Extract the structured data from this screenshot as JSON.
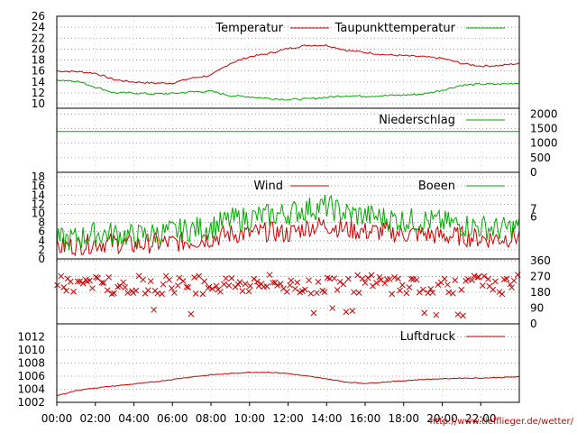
{
  "chart_data": [
    {
      "type": "line",
      "ylim": [
        10,
        26
      ],
      "yticks": [
        10,
        12,
        14,
        16,
        18,
        20,
        22,
        24,
        26
      ],
      "grid": true,
      "legend_position": "top-right",
      "x": [
        "00:00",
        "01:00",
        "02:00",
        "03:00",
        "04:00",
        "05:00",
        "06:00",
        "07:00",
        "08:00",
        "09:00",
        "10:00",
        "11:00",
        "12:00",
        "13:00",
        "14:00",
        "15:00",
        "16:00",
        "17:00",
        "18:00",
        "19:00",
        "20:00",
        "21:00",
        "22:00",
        "23:00",
        "24:00"
      ],
      "series": [
        {
          "name": "Temperatur",
          "color": "#cc0000",
          "values": [
            16.0,
            15.9,
            15.6,
            14.4,
            14.0,
            13.8,
            13.8,
            14.7,
            15.2,
            17.4,
            18.6,
            19.2,
            20.1,
            20.7,
            20.7,
            19.8,
            19.4,
            19.0,
            18.8,
            18.6,
            18.3,
            17.4,
            16.9,
            17.0,
            17.4
          ]
        },
        {
          "name": "Taupunkttemperatur",
          "color": "#00aa00",
          "values": [
            14.4,
            14.2,
            13.1,
            12.0,
            12.0,
            11.8,
            11.9,
            12.2,
            12.3,
            11.5,
            11.3,
            11.0,
            10.8,
            10.9,
            11.2,
            11.5,
            11.4,
            11.5,
            11.6,
            11.8,
            12.5,
            13.4,
            13.6,
            13.6,
            13.8
          ]
        }
      ]
    },
    {
      "type": "line",
      "ylim": [
        0,
        2000
      ],
      "yticks": [
        0,
        500,
        1000,
        1500,
        2000
      ],
      "grid": true,
      "legend_position": "top-right",
      "x": [
        "00:00",
        "24:00"
      ],
      "series": [
        {
          "name": "Niederschlag",
          "color": "#00aa00",
          "values": [
            1402.0,
            1402.0
          ]
        }
      ]
    },
    {
      "type": "line",
      "ylim": [
        0,
        19
      ],
      "yticks": [
        0,
        2,
        4,
        6,
        8,
        10,
        12,
        14,
        16,
        18
      ],
      "y2ticks": [
        6,
        7
      ],
      "grid": true,
      "legend_position": "top-right",
      "x": [
        "00:00",
        "01:00",
        "02:00",
        "03:00",
        "04:00",
        "05:00",
        "06:00",
        "07:00",
        "08:00",
        "09:00",
        "10:00",
        "11:00",
        "12:00",
        "13:00",
        "14:00",
        "15:00",
        "16:00",
        "17:00",
        "18:00",
        "19:00",
        "20:00",
        "21:00",
        "22:00",
        "23:00",
        "24:00"
      ],
      "series": [
        {
          "name": "Wind",
          "color": "#cc0000",
          "values": [
            2.5,
            3.0,
            3.5,
            3.5,
            3.0,
            3.5,
            3.5,
            4.0,
            4.5,
            5.5,
            5.5,
            6.0,
            5.5,
            7.0,
            7.5,
            6.5,
            6.0,
            6.0,
            5.5,
            5.5,
            5.0,
            5.0,
            4.5,
            4.5,
            5.0
          ]
        },
        {
          "name": "Boeen",
          "color": "#00aa00",
          "values": [
            4.0,
            4.5,
            5.5,
            5.5,
            5.0,
            5.5,
            6.0,
            6.5,
            7.0,
            8.5,
            9.0,
            9.5,
            10.0,
            11.0,
            11.5,
            10.0,
            9.5,
            9.0,
            8.5,
            8.5,
            8.0,
            7.5,
            7.0,
            6.5,
            7.0
          ]
        }
      ]
    },
    {
      "type": "scatter",
      "ylim": [
        0,
        360
      ],
      "yticks": [
        0,
        90,
        180,
        270,
        360
      ],
      "grid": true,
      "marker": "x",
      "x": [
        "00:00",
        "24:00"
      ],
      "series": [
        {
          "name": "",
          "color": "#cc0000",
          "values": [
            225,
            270
          ]
        }
      ]
    },
    {
      "type": "line",
      "ylim": [
        1002,
        1014
      ],
      "yticks": [
        1002,
        1004,
        1006,
        1008,
        1010,
        1012
      ],
      "grid": true,
      "legend_position": "top-right",
      "x": [
        "00:00",
        "01:00",
        "02:00",
        "03:00",
        "04:00",
        "05:00",
        "06:00",
        "07:00",
        "08:00",
        "09:00",
        "10:00",
        "11:00",
        "12:00",
        "13:00",
        "14:00",
        "15:00",
        "16:00",
        "17:00",
        "18:00",
        "19:00",
        "20:00",
        "21:00",
        "22:00",
        "23:00",
        "24:00"
      ],
      "series": [
        {
          "name": "Luftdruck",
          "color": "#cc0000",
          "values": [
            1003.0,
            1003.8,
            1004.2,
            1004.5,
            1004.8,
            1005.1,
            1005.5,
            1005.9,
            1006.2,
            1006.4,
            1006.6,
            1006.6,
            1006.4,
            1006.0,
            1005.6,
            1005.1,
            1004.9,
            1005.1,
            1005.3,
            1005.5,
            1005.6,
            1005.7,
            1005.7,
            1005.8,
            1005.9
          ]
        }
      ]
    }
  ],
  "x_axis": {
    "tick_labels": [
      "00:00",
      "02:00",
      "04:00",
      "06:00",
      "08:00",
      "10:00",
      "12:00",
      "14:00",
      "16:00",
      "18:00",
      "20:00",
      "22:00"
    ]
  },
  "footer": {
    "credit": "http://www.tiefflieger.de/wetter/"
  }
}
